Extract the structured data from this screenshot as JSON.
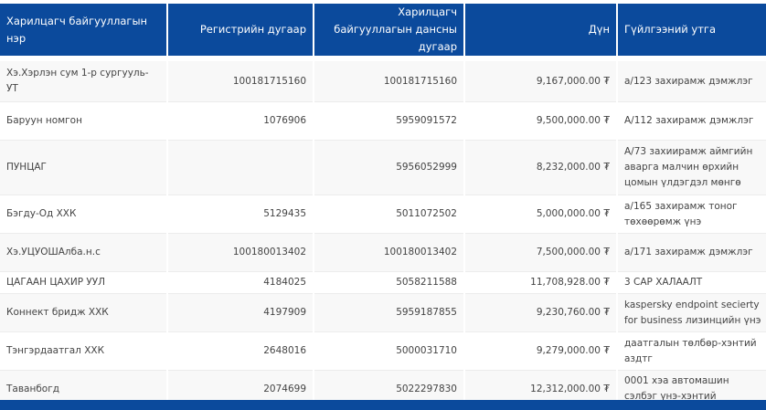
{
  "headers": {
    "name": "Харилцагч байгууллагын нэр",
    "register": "Регистрийн дугаар",
    "account": "Харилцагч байгууллагын дансны дугаар",
    "amount": "Дүн",
    "description": "Гүйлгээний утга"
  },
  "accent_color": "#0b4a9c",
  "rows": [
    {
      "name": "Хэ.Хэрлэн сум 1-р сургууль-УТ",
      "register": "100181715160",
      "account": "100181715160",
      "amount": "9,167,000.00 ₮",
      "description": "а/123 захирамж дэмжлэг"
    },
    {
      "name": "Баруун номгон",
      "register": "1076906",
      "account": "5959091572",
      "amount": "9,500,000.00 ₮",
      "description": "А/112 захирамж дэмжлэг"
    },
    {
      "name": "ПУНЦАГ",
      "register": "",
      "account": "5956052999",
      "amount": "8,232,000.00 ₮",
      "description": "А/73 захиирамж аймгийн аварга малчин өрхийн цомын үлдэгдэл мөнгө"
    },
    {
      "name": "Бэгду-Од ХХК",
      "register": "5129435",
      "account": "5011072502",
      "amount": "5,000,000.00 ₮",
      "description": "а/165 захирамж тоног төхөөрөмж үнэ"
    },
    {
      "name": "Хэ.УЦУОШАлба.н.с",
      "register": "100180013402",
      "account": "100180013402",
      "amount": "7,500,000.00 ₮",
      "description": "а/171 захирамж дэмжлэг"
    },
    {
      "name": "ЦАГААН ЦАХИР УУЛ",
      "register": "4184025",
      "account": "5058211588",
      "amount": "11,708,928.00 ₮",
      "description": "3 САР ХАЛААЛТ"
    },
    {
      "name": "Коннект бридж ХХК",
      "register": "4197909",
      "account": "5959187855",
      "amount": "9,230,760.00 ₮",
      "description": "kaspersky endpoint secierty for business лизинцийн үнэ"
    },
    {
      "name": "Тэнгэрдаатгал ХХК",
      "register": "2648016",
      "account": "5000031710",
      "amount": "9,279,000.00 ₮",
      "description": "даатгалын төлбөр-хэнтий аздтг"
    },
    {
      "name": "Таванбогд",
      "register": "2074699",
      "account": "5022297830",
      "amount": "12,312,000.00 ₮",
      "description": "0001 хэа автомашин сэлбэг үнэ-хэнтий"
    }
  ]
}
